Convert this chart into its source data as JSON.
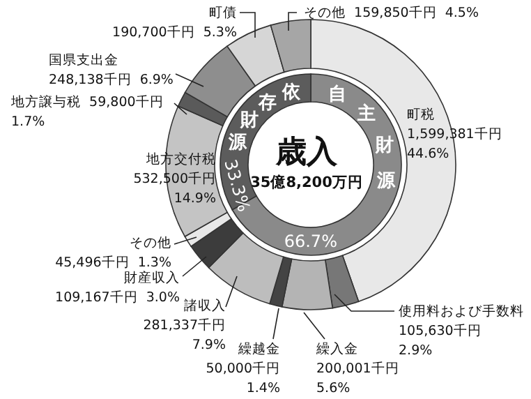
{
  "chart_data": [
    {
      "type": "donut",
      "title": "歳入",
      "subtitle": "35億8,200万円",
      "categories": [
        "町税",
        "使用料および手数料",
        "繰入金",
        "繰越金",
        "諸収入",
        "財産収入",
        "その他",
        "地方交付税",
        "地方譲与税",
        "国県支出金",
        "町債",
        "その他"
      ],
      "values": [
        1599381,
        105630,
        200001,
        50000,
        281337,
        109167,
        45496,
        532500,
        59800,
        248138,
        190700,
        159850
      ],
      "value_labels": [
        "1,599,381千円\n44.6%",
        "105,630千円\n2.9%",
        "200,001千円\n5.6%",
        "50,000千円\n1.4%",
        "281,337千円\n7.9%",
        "109,167千円  3.0%",
        "45,496千円  1.3%",
        "532,500千円\n14.9%",
        "59,800千円\n1.7%",
        "248,138千円  6.9%",
        "190,700千円  5.3%",
        "159,850千円  4.5%"
      ],
      "colors": [
        "#e8e8e8",
        "#777777",
        "#b4b4b4",
        "#444444",
        "#bdbdbd",
        "#3c3c3c",
        "#e8e8e8",
        "#c4c4c4",
        "#5a5a5a",
        "#8e8e8e",
        "#d6d6d6",
        "#a6a6a6"
      ]
    },
    {
      "type": "donut",
      "categories": [
        "自主財源",
        "依存財源"
      ],
      "values": [
        66.7,
        33.3
      ],
      "value_labels": [
        "66.7%",
        "33.3%"
      ],
      "colors": [
        "#8a8a8a",
        "#5c5c5c"
      ]
    }
  ]
}
